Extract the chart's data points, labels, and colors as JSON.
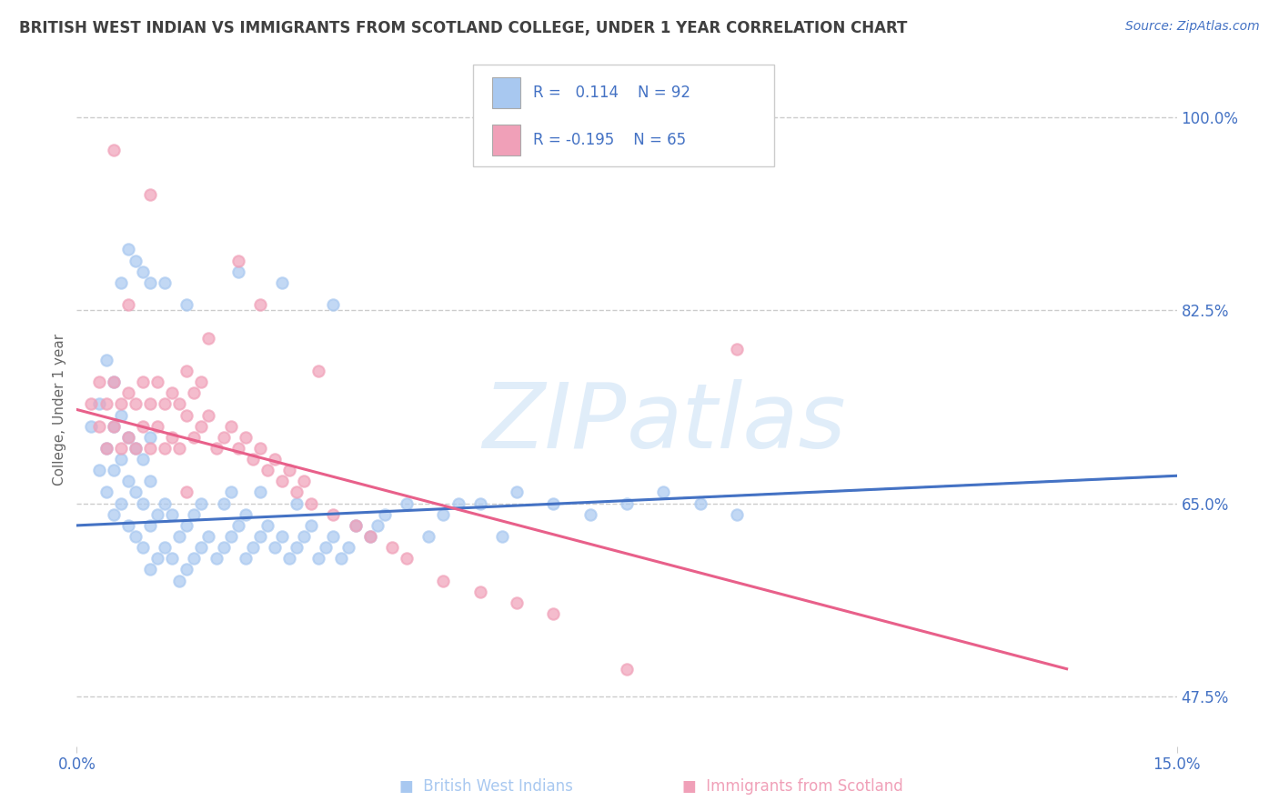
{
  "title": "BRITISH WEST INDIAN VS IMMIGRANTS FROM SCOTLAND COLLEGE, UNDER 1 YEAR CORRELATION CHART",
  "source_text": "Source: ZipAtlas.com",
  "xlabel": "",
  "ylabel": "College, Under 1 year",
  "xlim": [
    0.0,
    15.0
  ],
  "ylim": [
    43.0,
    104.0
  ],
  "yticks": [
    47.5,
    65.0,
    82.5,
    100.0
  ],
  "ytick_labels": [
    "47.5%",
    "65.0%",
    "82.5%",
    "100.0%"
  ],
  "xticks": [
    0.0,
    15.0
  ],
  "xtick_labels": [
    "0.0%",
    "15.0%"
  ],
  "blue_color": "#A8C8F0",
  "pink_color": "#F0A0B8",
  "trend_blue_color": "#4472C4",
  "trend_pink_color": "#E8608A",
  "watermark": "ZIPatlas",
  "label1": "British West Indians",
  "label2": "Immigrants from Scotland",
  "blue_dots_x": [
    0.2,
    0.3,
    0.3,
    0.4,
    0.4,
    0.4,
    0.5,
    0.5,
    0.5,
    0.5,
    0.6,
    0.6,
    0.6,
    0.7,
    0.7,
    0.7,
    0.8,
    0.8,
    0.8,
    0.9,
    0.9,
    0.9,
    1.0,
    1.0,
    1.0,
    1.0,
    1.1,
    1.1,
    1.2,
    1.2,
    1.3,
    1.3,
    1.4,
    1.4,
    1.5,
    1.5,
    1.6,
    1.6,
    1.7,
    1.7,
    1.8,
    1.9,
    2.0,
    2.0,
    2.1,
    2.1,
    2.2,
    2.3,
    2.3,
    2.4,
    2.5,
    2.5,
    2.6,
    2.7,
    2.8,
    2.9,
    3.0,
    3.0,
    3.1,
    3.2,
    3.3,
    3.4,
    3.5,
    3.6,
    3.7,
    4.0,
    4.1,
    4.5,
    5.0,
    5.5,
    6.0,
    6.5,
    7.0,
    7.5,
    8.0,
    8.5,
    9.0,
    3.8,
    4.2,
    5.2,
    1.2,
    2.2,
    0.6,
    0.7,
    0.8,
    0.9,
    1.0,
    1.5,
    2.8,
    3.5,
    4.8,
    5.8
  ],
  "blue_dots_y": [
    72.0,
    68.0,
    74.0,
    66.0,
    70.0,
    78.0,
    64.0,
    68.0,
    72.0,
    76.0,
    65.0,
    69.0,
    73.0,
    63.0,
    67.0,
    71.0,
    62.0,
    66.0,
    70.0,
    61.0,
    65.0,
    69.0,
    59.0,
    63.0,
    67.0,
    71.0,
    60.0,
    64.0,
    61.0,
    65.0,
    60.0,
    64.0,
    58.0,
    62.0,
    59.0,
    63.0,
    60.0,
    64.0,
    61.0,
    65.0,
    62.0,
    60.0,
    61.0,
    65.0,
    62.0,
    66.0,
    63.0,
    60.0,
    64.0,
    61.0,
    62.0,
    66.0,
    63.0,
    61.0,
    62.0,
    60.0,
    61.0,
    65.0,
    62.0,
    63.0,
    60.0,
    61.0,
    62.0,
    60.0,
    61.0,
    62.0,
    63.0,
    65.0,
    64.0,
    65.0,
    66.0,
    65.0,
    64.0,
    65.0,
    66.0,
    65.0,
    64.0,
    63.0,
    64.0,
    65.0,
    85.0,
    86.0,
    85.0,
    88.0,
    87.0,
    86.0,
    85.0,
    83.0,
    85.0,
    83.0,
    62.0,
    62.0
  ],
  "pink_dots_x": [
    0.2,
    0.3,
    0.3,
    0.4,
    0.4,
    0.5,
    0.5,
    0.6,
    0.6,
    0.7,
    0.7,
    0.8,
    0.8,
    0.9,
    0.9,
    1.0,
    1.0,
    1.1,
    1.1,
    1.2,
    1.2,
    1.3,
    1.3,
    1.4,
    1.4,
    1.5,
    1.5,
    1.6,
    1.6,
    1.7,
    1.7,
    1.8,
    1.9,
    2.0,
    2.1,
    2.2,
    2.3,
    2.4,
    2.5,
    2.6,
    2.7,
    2.8,
    2.9,
    3.0,
    3.1,
    3.2,
    3.5,
    3.8,
    4.0,
    4.3,
    4.5,
    5.0,
    5.5,
    6.0,
    6.5,
    7.5,
    9.0,
    2.2,
    0.5,
    1.0,
    1.8,
    2.5,
    3.3,
    0.7,
    1.5
  ],
  "pink_dots_y": [
    74.0,
    72.0,
    76.0,
    70.0,
    74.0,
    72.0,
    76.0,
    70.0,
    74.0,
    71.0,
    75.0,
    70.0,
    74.0,
    72.0,
    76.0,
    70.0,
    74.0,
    72.0,
    76.0,
    70.0,
    74.0,
    71.0,
    75.0,
    70.0,
    74.0,
    73.0,
    77.0,
    71.0,
    75.0,
    72.0,
    76.0,
    73.0,
    70.0,
    71.0,
    72.0,
    70.0,
    71.0,
    69.0,
    70.0,
    68.0,
    69.0,
    67.0,
    68.0,
    66.0,
    67.0,
    65.0,
    64.0,
    63.0,
    62.0,
    61.0,
    60.0,
    58.0,
    57.0,
    56.0,
    55.0,
    50.0,
    79.0,
    87.0,
    97.0,
    93.0,
    80.0,
    83.0,
    77.0,
    83.0,
    66.0
  ],
  "blue_trend_x0": 0.0,
  "blue_trend_x1": 15.0,
  "blue_trend_y0": 63.0,
  "blue_trend_y1": 67.5,
  "pink_trend_x0": 0.0,
  "pink_trend_x1": 13.5,
  "pink_trend_y0": 73.5,
  "pink_trend_y1": 50.0,
  "background_color": "#ffffff",
  "grid_color": "#cccccc",
  "text_color": "#4472C4",
  "title_color": "#404040"
}
